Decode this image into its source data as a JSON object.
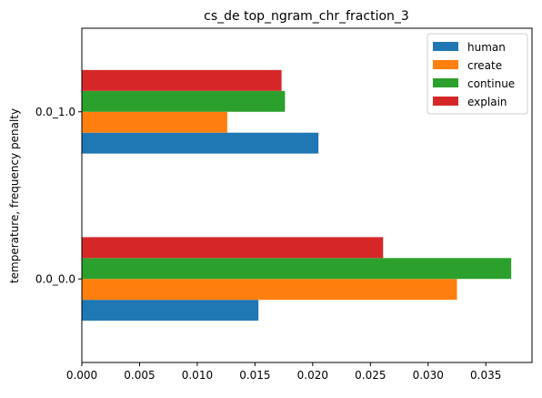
{
  "chart_data": {
    "type": "bar",
    "orientation": "horizontal",
    "title": "cs_de top_ngram_chr_fraction_3",
    "xlabel": "",
    "ylabel": "temperature, frequency penalty",
    "categories": [
      "0.0_0.0",
      "0.0_1.0"
    ],
    "series": [
      {
        "name": "human",
        "color": "#1f77b4",
        "values": [
          0.0153,
          0.0205
        ]
      },
      {
        "name": "create",
        "color": "#ff7f0e",
        "values": [
          0.0325,
          0.0126
        ]
      },
      {
        "name": "continue",
        "color": "#2ca02c",
        "values": [
          0.0372,
          0.0176
        ]
      },
      {
        "name": "explain",
        "color": "#d62728",
        "values": [
          0.0261,
          0.0173
        ]
      }
    ],
    "xlim": [
      0,
      0.039
    ],
    "xticks": [
      "0.000",
      "0.005",
      "0.010",
      "0.015",
      "0.020",
      "0.025",
      "0.030",
      "0.035"
    ],
    "grid": false,
    "legend_position": "top-right"
  }
}
